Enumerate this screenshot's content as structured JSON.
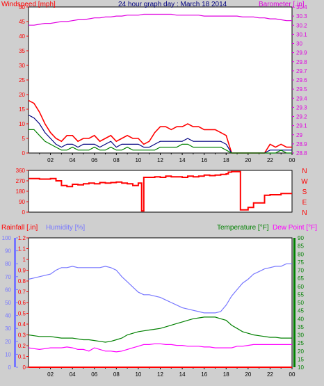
{
  "title": "24 hour graph day : March 18 2014",
  "colors": {
    "background": "#cfcfcf",
    "plot_bg": "#ffffff",
    "wind": "#ff0000",
    "avgwind": "#000080",
    "gust": "#008000",
    "baro": "#e000e0",
    "dir": "#ff0000",
    "rain": "#ff0000",
    "humidity": "#7777ff",
    "temp": "#008000",
    "dew": "#ff00ff",
    "title": "#000080"
  },
  "x_ticks": [
    "02",
    "04",
    "06",
    "08",
    "10",
    "12",
    "14",
    "16",
    "18",
    "20",
    "22",
    "00"
  ],
  "chart_data": [
    {
      "type": "line",
      "left_label": "Windspeed [mph]",
      "right_label": "Barometer [.in]",
      "left_ylim": [
        0,
        50
      ],
      "left_ticks": [
        "0",
        "5",
        "10",
        "15",
        "20",
        "25",
        "30",
        "35",
        "40",
        "45",
        "50"
      ],
      "right_ylim": [
        28.8,
        30.4
      ],
      "right_ticks": [
        "28.8",
        "28.9",
        "29",
        "29.1",
        "29.2",
        "29.3",
        "29.4",
        "29.5",
        "29.6",
        "29.7",
        "29.8",
        "29.9",
        "30",
        "30.1",
        "30.2",
        "30.3",
        "30.4"
      ],
      "x_hours": [
        0,
        0.5,
        1,
        1.5,
        2,
        2.5,
        3,
        3.5,
        4,
        4.5,
        5,
        5.5,
        6,
        6.5,
        7,
        7.5,
        8,
        8.5,
        9,
        9.5,
        10,
        10.5,
        11,
        11.5,
        12,
        12.5,
        13,
        13.5,
        14,
        14.5,
        15,
        15.5,
        16,
        16.5,
        17,
        17.5,
        18,
        18.5,
        19,
        19.5,
        20,
        20.5,
        21,
        21.5,
        22,
        22.5,
        23,
        23.5,
        24
      ],
      "series": [
        {
          "key": "wind",
          "values": [
            18,
            17,
            14,
            10,
            7,
            5,
            4,
            6,
            6,
            4,
            5,
            5,
            6,
            4,
            5,
            6,
            4,
            5,
            6,
            5,
            5,
            3,
            4,
            7,
            9,
            9,
            8,
            9,
            9,
            10,
            9,
            9,
            8,
            8,
            8,
            7,
            6,
            0,
            0,
            0,
            0,
            0,
            0,
            0,
            3,
            2,
            3,
            2,
            2
          ]
        },
        {
          "key": "avgwind",
          "values": [
            13,
            12,
            10,
            7,
            5,
            3,
            2,
            3,
            3,
            2,
            3,
            3,
            3,
            2,
            3,
            4,
            2,
            3,
            3,
            3,
            3,
            2,
            2,
            3,
            4,
            4,
            4,
            4,
            4,
            5,
            4,
            4,
            4,
            4,
            4,
            4,
            3,
            0,
            0,
            0,
            0,
            0,
            0,
            0,
            1,
            1,
            1,
            1,
            1
          ]
        },
        {
          "key": "gust",
          "values": [
            8,
            8,
            6,
            4,
            3,
            2,
            1,
            1,
            2,
            1,
            1,
            1,
            2,
            1,
            1,
            2,
            1,
            1,
            2,
            1,
            1,
            1,
            1,
            1,
            2,
            2,
            2,
            2,
            3,
            3,
            2,
            2,
            2,
            2,
            2,
            2,
            1,
            0,
            0,
            0,
            0,
            0,
            0,
            0,
            0,
            0,
            1,
            0,
            0
          ]
        },
        {
          "key": "baro",
          "values": [
            30.2,
            30.2,
            30.21,
            30.22,
            30.22,
            30.23,
            30.24,
            30.24,
            30.25,
            30.26,
            30.26,
            30.27,
            30.28,
            30.28,
            30.29,
            30.29,
            30.3,
            30.3,
            30.31,
            30.31,
            30.31,
            30.32,
            30.32,
            30.32,
            30.32,
            30.32,
            30.32,
            30.31,
            30.31,
            30.31,
            30.31,
            30.31,
            30.3,
            30.3,
            30.3,
            30.3,
            30.3,
            30.3,
            30.3,
            30.29,
            30.29,
            30.29,
            30.28,
            30.28,
            30.27,
            30.27,
            30.26,
            30.25,
            30.25
          ]
        }
      ]
    },
    {
      "type": "line",
      "left_ylim": [
        0,
        360
      ],
      "left_ticks": [
        "0",
        "90",
        "180",
        "270",
        "360"
      ],
      "right_ticks": [
        "N",
        "W",
        "S",
        "E",
        "N"
      ],
      "x_hours": [
        0,
        0.5,
        1,
        1.5,
        2,
        2.5,
        3,
        3.5,
        4,
        4.5,
        5,
        5.5,
        6,
        6.5,
        7,
        7.5,
        8,
        8.5,
        9,
        9.5,
        10,
        10.3,
        10.5,
        11,
        11.5,
        12,
        12.5,
        13,
        13.5,
        14,
        14.5,
        15,
        15.5,
        16,
        16.5,
        17,
        17.5,
        18,
        18.2,
        18.5,
        19,
        19.3,
        19.5,
        20,
        20.5,
        21,
        21.5,
        22,
        22.5,
        23,
        23.5,
        24
      ],
      "series": [
        {
          "key": "dir",
          "values": [
            290,
            290,
            285,
            285,
            290,
            270,
            230,
            220,
            240,
            235,
            245,
            250,
            245,
            255,
            250,
            255,
            260,
            250,
            245,
            230,
            250,
            10,
            300,
            300,
            305,
            300,
            310,
            305,
            305,
            300,
            310,
            305,
            310,
            320,
            315,
            320,
            325,
            330,
            345,
            350,
            350,
            20,
            20,
            40,
            80,
            80,
            145,
            150,
            150,
            160,
            160,
            160
          ]
        }
      ]
    },
    {
      "type": "line",
      "left_label": "Rainfall [.in]",
      "left_label2": "Humidity [%]",
      "right_label": "Temperature [°F]",
      "right_label2": "Dew Point [°F]",
      "rain_ylim": [
        0,
        1.2
      ],
      "rain_ticks": [
        "0",
        "0.1",
        "0.2",
        "0.3",
        "0.4",
        "0.5",
        "0.6",
        "0.7",
        "0.8",
        "0.9",
        "1",
        "1.1",
        "1.2"
      ],
      "hum_ylim": [
        0,
        100
      ],
      "hum_ticks": [
        "0",
        "10",
        "20",
        "30",
        "40",
        "50",
        "60",
        "70",
        "80",
        "90",
        "100"
      ],
      "temp_ylim": [
        10,
        90
      ],
      "temp_ticks": [
        "10",
        "15",
        "20",
        "25",
        "30",
        "35",
        "40",
        "45",
        "50",
        "55",
        "60",
        "65",
        "70",
        "75",
        "80",
        "85",
        "90"
      ],
      "x_hours": [
        0,
        0.5,
        1,
        1.5,
        2,
        2.5,
        3,
        3.5,
        4,
        4.5,
        5,
        5.5,
        6,
        6.5,
        7,
        7.5,
        8,
        8.5,
        9,
        9.5,
        10,
        10.5,
        11,
        11.5,
        12,
        12.5,
        13,
        13.5,
        14,
        14.5,
        15,
        15.5,
        16,
        16.5,
        17,
        17.5,
        18,
        18.5,
        19,
        19.5,
        20,
        20.5,
        21,
        21.5,
        22,
        22.5,
        23,
        23.5,
        24
      ],
      "series": [
        {
          "key": "humidity",
          "values": [
            68,
            69,
            70,
            71,
            72,
            75,
            77,
            77,
            78,
            77,
            77,
            77,
            77,
            77,
            78,
            77,
            75,
            70,
            66,
            62,
            58,
            56,
            56,
            55,
            54,
            52,
            50,
            48,
            46,
            45,
            44,
            43,
            42,
            42,
            42,
            43,
            48,
            55,
            60,
            65,
            68,
            72,
            74,
            76,
            77,
            78,
            78,
            80,
            80
          ]
        },
        {
          "key": "temp",
          "values": [
            30,
            29.5,
            29,
            29,
            29,
            28.5,
            28,
            28,
            28,
            27.5,
            27,
            27,
            26.5,
            26,
            25.5,
            26,
            27,
            28,
            30,
            31,
            32,
            32.5,
            33,
            33.5,
            34,
            35,
            36,
            37,
            38,
            39,
            40,
            40.5,
            41,
            41,
            41,
            40,
            39,
            36,
            34,
            32,
            31,
            30,
            29.5,
            29,
            28.5,
            28.5,
            28,
            28,
            28
          ]
        },
        {
          "key": "dew",
          "values": [
            22,
            21.5,
            21,
            21.5,
            22,
            22,
            22,
            22.5,
            22,
            21,
            21,
            20,
            22,
            21,
            20,
            20,
            19.5,
            20,
            21,
            22,
            23,
            24,
            24,
            24.5,
            24.5,
            24,
            24,
            23.5,
            23.5,
            23,
            23,
            23,
            22.5,
            22.5,
            22,
            22,
            22,
            22,
            23,
            23,
            23.5,
            24,
            24,
            24,
            24,
            24,
            24,
            24,
            24
          ]
        },
        {
          "key": "rain",
          "values": [
            0,
            0,
            0,
            0,
            0,
            0,
            0,
            0,
            0,
            0,
            0,
            0,
            0,
            0,
            0,
            0,
            0,
            0,
            0,
            0,
            0,
            0,
            0,
            0,
            0,
            0,
            0,
            0,
            0,
            0,
            0,
            0,
            0,
            0,
            0,
            0,
            0,
            0,
            0,
            0,
            0,
            0,
            0,
            0,
            0,
            0,
            0,
            0,
            0
          ]
        }
      ]
    }
  ]
}
